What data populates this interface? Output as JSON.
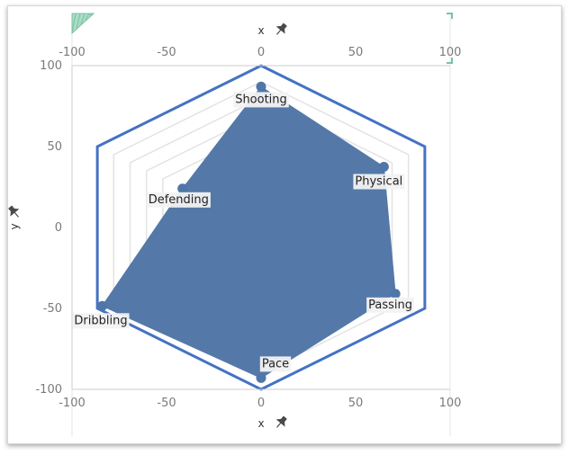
{
  "chart_data": {
    "type": "radar",
    "xlim": [
      -100,
      100
    ],
    "ylim": [
      -100,
      100
    ],
    "x_ticks": [
      -100,
      -50,
      0,
      50,
      100
    ],
    "y_ticks": [
      100,
      50,
      0,
      -50,
      -100
    ],
    "xlabel": "x",
    "ylabel": "y",
    "grid_levels": [
      0.5,
      0.6,
      0.7,
      0.8,
      0.9
    ],
    "outer_radius": 100,
    "categories": [
      "Shooting",
      "Physical",
      "Passing",
      "Pace",
      "Dribbling",
      "Defending"
    ],
    "angles_deg": [
      90,
      30,
      -30,
      -90,
      -150,
      150
    ],
    "values": [
      87,
      75,
      82,
      93,
      97,
      48
    ],
    "colors": {
      "fill": "#5479a8",
      "outline": "#4472c4",
      "grid": "#e3e3e3",
      "point": "#4e76a8"
    }
  }
}
